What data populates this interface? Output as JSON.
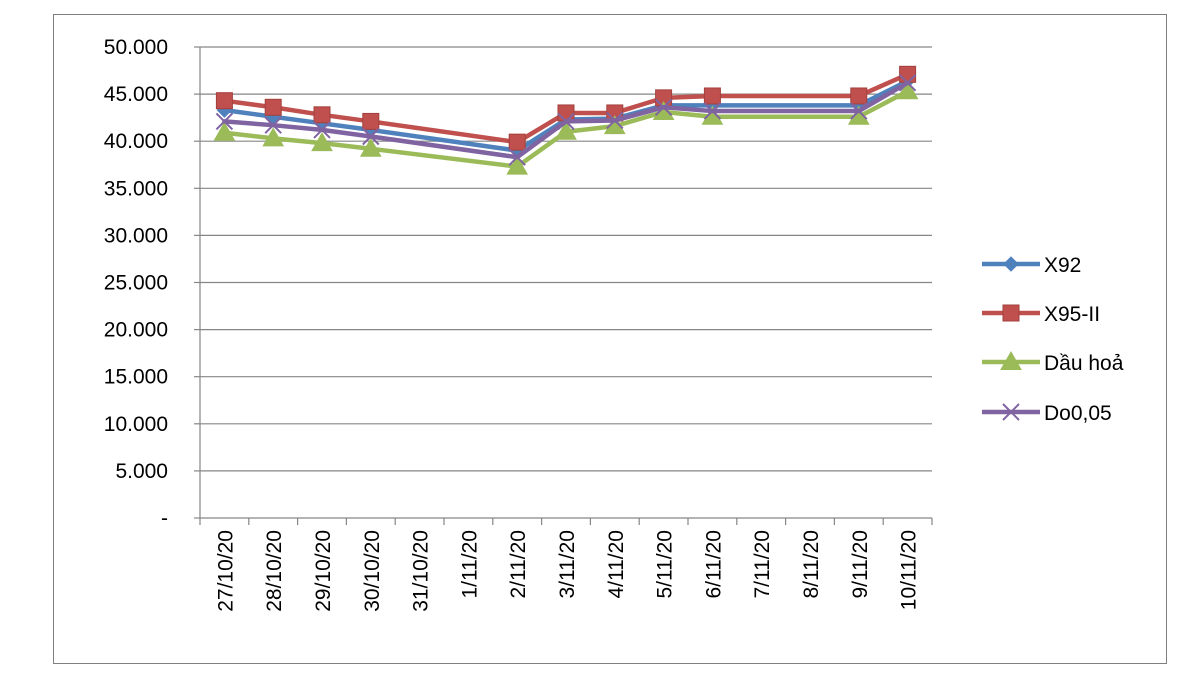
{
  "chart_data": {
    "type": "line",
    "title": "",
    "xlabel": "",
    "ylabel": "",
    "categories": [
      "27/10/20",
      "28/10/20",
      "29/10/20",
      "30/10/20",
      "31/10/20",
      "1/11/20",
      "2/11/20",
      "3/11/20",
      "4/11/20",
      "5/11/20",
      "6/11/20",
      "7/11/20",
      "8/11/20",
      "9/11/20",
      "10/11/20"
    ],
    "ylim": [
      0,
      50000
    ],
    "yticks": [
      {
        "value": 0,
        "label": "-"
      },
      {
        "value": 5000,
        "label": "5.000"
      },
      {
        "value": 10000,
        "label": "10.000"
      },
      {
        "value": 15000,
        "label": "15.000"
      },
      {
        "value": 20000,
        "label": "20.000"
      },
      {
        "value": 25000,
        "label": "25.000"
      },
      {
        "value": 30000,
        "label": "30.000"
      },
      {
        "value": 35000,
        "label": "35.000"
      },
      {
        "value": 40000,
        "label": "40.000"
      },
      {
        "value": 45000,
        "label": "45.000"
      },
      {
        "value": 50000,
        "label": "50.000"
      }
    ],
    "grid": true,
    "legend_position": "right",
    "series": [
      {
        "name": "X92",
        "color": "#4f81bd",
        "marker": "diamond",
        "values": [
          43300,
          42600,
          41900,
          41200,
          null,
          null,
          39000,
          42300,
          42400,
          43800,
          43800,
          null,
          null,
          43800,
          46400
        ]
      },
      {
        "name": "X95-II",
        "color": "#c0504d",
        "marker": "square",
        "values": [
          44300,
          43600,
          42800,
          42100,
          null,
          null,
          39900,
          43000,
          43000,
          44600,
          44800,
          null,
          null,
          44800,
          47100
        ]
      },
      {
        "name": "Dầu hoả",
        "color": "#9bbb59",
        "marker": "triangle",
        "values": [
          40900,
          40300,
          39800,
          39200,
          null,
          null,
          37300,
          41000,
          41600,
          43100,
          42600,
          null,
          null,
          42600,
          45300
        ]
      },
      {
        "name": "Do0,05",
        "color": "#8064a2",
        "marker": "x",
        "values": [
          42100,
          41700,
          41200,
          40500,
          null,
          null,
          38300,
          42100,
          42200,
          43600,
          43200,
          null,
          null,
          43200,
          46200
        ]
      }
    ]
  }
}
